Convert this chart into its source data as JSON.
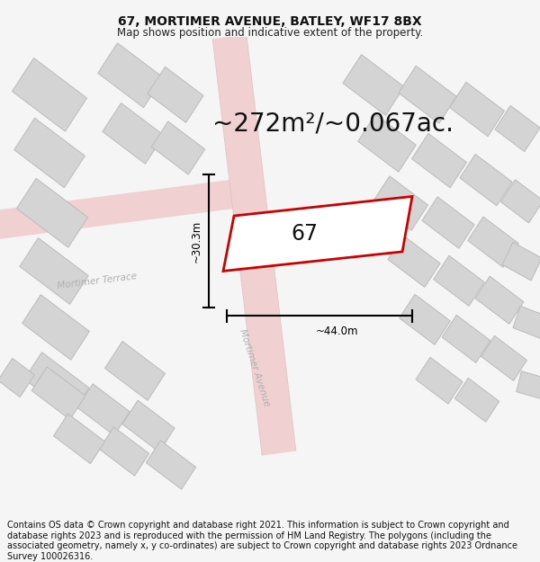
{
  "title": "67, MORTIMER AVENUE, BATLEY, WF17 8BX",
  "subtitle": "Map shows position and indicative extent of the property.",
  "area_text": "~272m²/~0.067ac.",
  "label_67": "67",
  "dim_height": "~30.3m",
  "dim_width": "~44.0m",
  "street1": "Mortimer Terrace",
  "street2": "Mortimer Avenue",
  "footer": "Contains OS data © Crown copyright and database right 2021. This information is subject to Crown copyright and database rights 2023 and is reproduced with the permission of HM Land Registry. The polygons (including the associated geometry, namely x, y co-ordinates) are subject to Crown copyright and database rights 2023 Ordnance Survey 100026316.",
  "bg_color": "#f5f5f5",
  "map_bg": "#fafafa",
  "road_color": "#f0d0d0",
  "building_fill": "#d4d4d4",
  "building_edge": "#bbbbbb",
  "plot_fill": "#ffffff",
  "plot_edge": "#cc0000",
  "road_label_color": "#b0b0b0",
  "title_fontsize": 10,
  "subtitle_fontsize": 8.5,
  "area_fontsize": 20,
  "label_fontsize": 17,
  "dim_fontsize": 8.5,
  "footer_fontsize": 7
}
